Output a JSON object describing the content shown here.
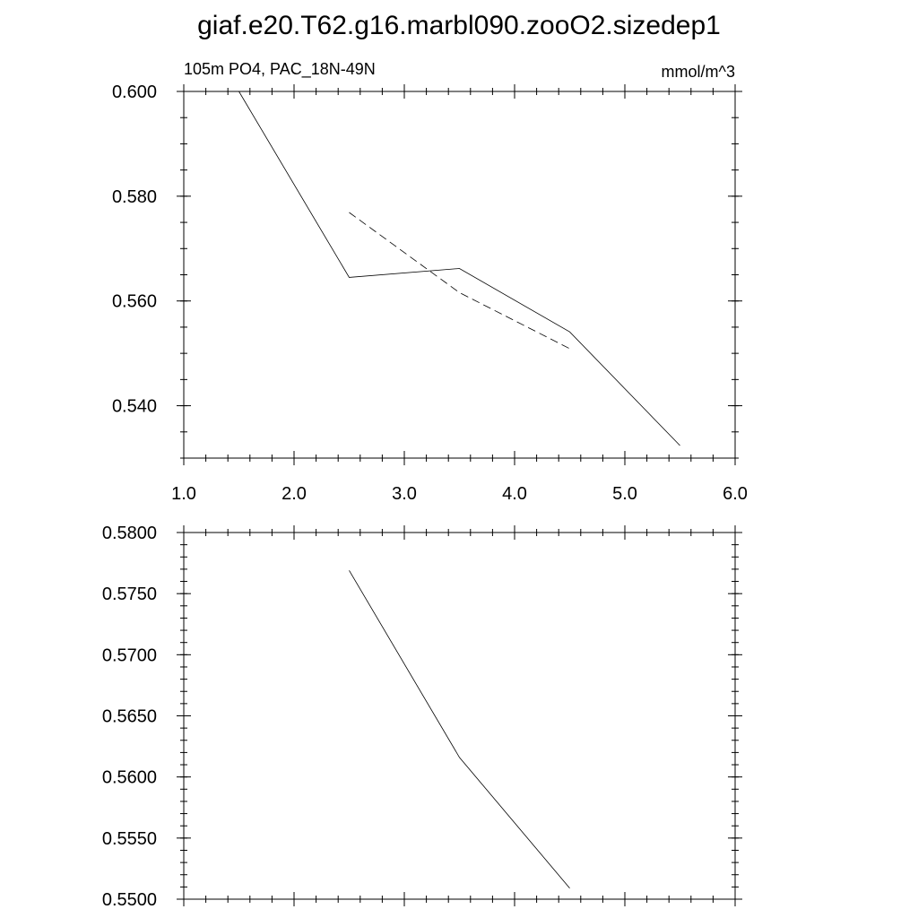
{
  "figure": {
    "title": "giaf.e20.T62.g16.marbl090.zooO2.sizedep1"
  },
  "chart_data": [
    {
      "type": "line",
      "title": "",
      "left_label": "105m PO4, PAC_18N-49N",
      "right_label": "mmol/m^3",
      "xlabel": "",
      "ylabel": "",
      "xlim": [
        1.0,
        6.0
      ],
      "ylim": [
        0.53,
        0.6
      ],
      "grid": false,
      "x_ticks": [
        {
          "value": 1.0,
          "label": "1.0"
        },
        {
          "value": 2.0,
          "label": "2.0"
        },
        {
          "value": 3.0,
          "label": "3.0"
        },
        {
          "value": 4.0,
          "label": "4.0"
        },
        {
          "value": 5.0,
          "label": "5.0"
        },
        {
          "value": 6.0,
          "label": "6.0"
        }
      ],
      "x_minor_step": 0.2,
      "y_ticks": [
        {
          "value": 0.54,
          "label": "0.540"
        },
        {
          "value": 0.56,
          "label": "0.560"
        },
        {
          "value": 0.58,
          "label": "0.580"
        },
        {
          "value": 0.6,
          "label": "0.600"
        }
      ],
      "y_minor_step": 0.005,
      "series": [
        {
          "style": "solid",
          "color": "#000000",
          "x": [
            1.5,
            2.5,
            3.5,
            4.5,
            5.5
          ],
          "y": [
            0.6,
            0.5645,
            0.5662,
            0.5541,
            0.5324
          ]
        },
        {
          "style": "dashed",
          "color": "#000000",
          "x": [
            2.5,
            3.5,
            4.5
          ],
          "y": [
            0.5769,
            0.5616,
            0.5509
          ]
        }
      ]
    },
    {
      "type": "line",
      "title": "",
      "xlabel": "",
      "ylabel": "",
      "xlim": [
        1.0,
        6.0
      ],
      "ylim": [
        0.55,
        0.58
      ],
      "grid": false,
      "x_ticks": [
        {
          "value": 1.0,
          "label": ""
        },
        {
          "value": 2.0,
          "label": ""
        },
        {
          "value": 3.0,
          "label": ""
        },
        {
          "value": 4.0,
          "label": ""
        },
        {
          "value": 5.0,
          "label": ""
        },
        {
          "value": 6.0,
          "label": ""
        }
      ],
      "x_minor_step": 0.2,
      "y_ticks": [
        {
          "value": 0.55,
          "label": "0.5500"
        },
        {
          "value": 0.555,
          "label": "0.5550"
        },
        {
          "value": 0.56,
          "label": "0.5600"
        },
        {
          "value": 0.565,
          "label": "0.5650"
        },
        {
          "value": 0.57,
          "label": "0.5700"
        },
        {
          "value": 0.575,
          "label": "0.5750"
        },
        {
          "value": 0.58,
          "label": "0.5800"
        }
      ],
      "y_minor_step": 0.001,
      "series": [
        {
          "style": "solid",
          "color": "#000000",
          "x": [
            2.5,
            3.5,
            4.5
          ],
          "y": [
            0.5769,
            0.5616,
            0.5509
          ]
        }
      ]
    }
  ]
}
